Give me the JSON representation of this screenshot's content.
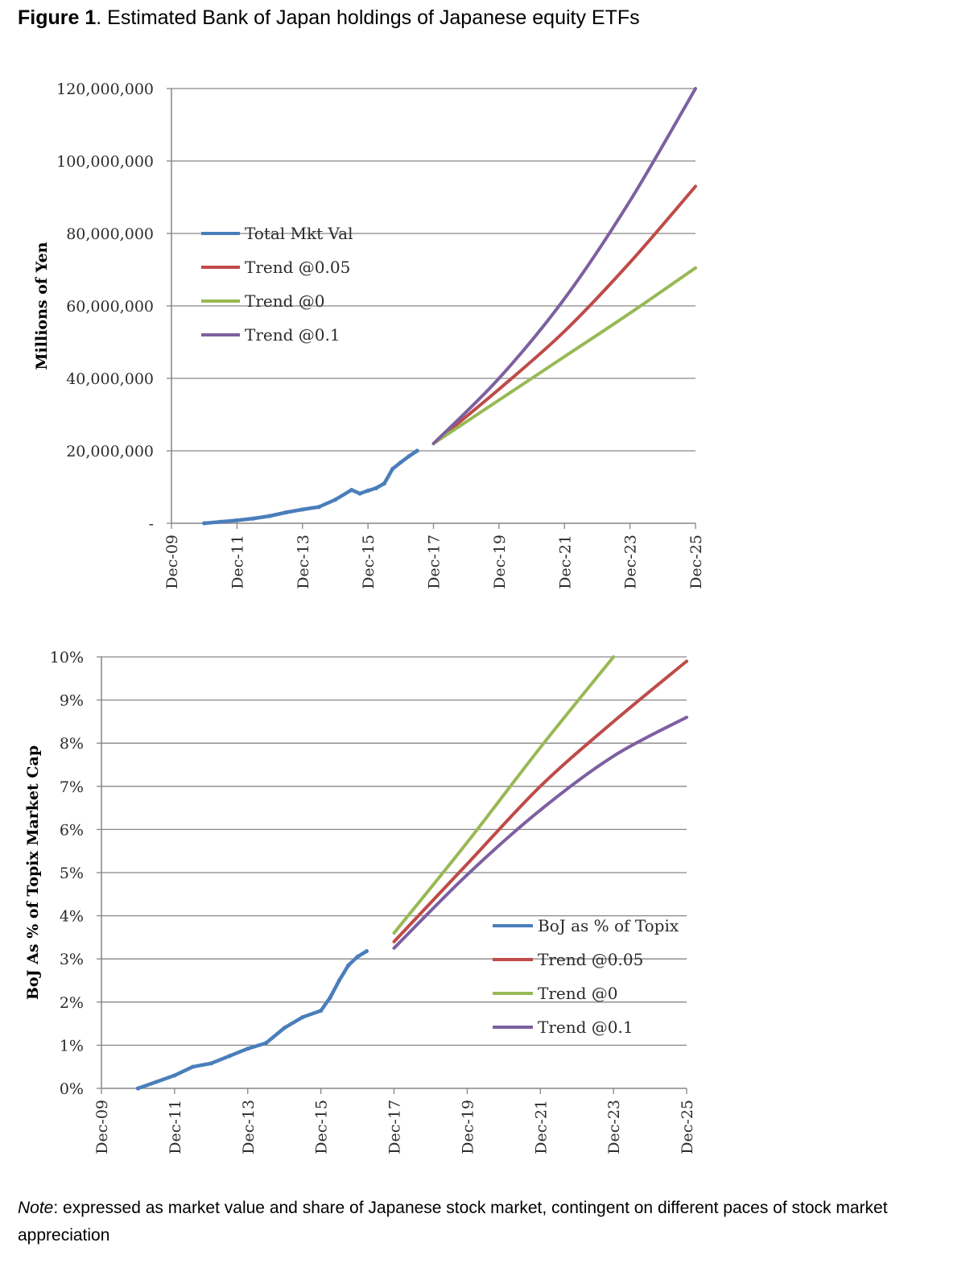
{
  "figure": {
    "label": "Figure 1",
    "title": ". Estimated Bank of Japan holdings of Japanese equity ETFs"
  },
  "note": {
    "label": "Note",
    "text": ": expressed as market value and share of Japanese stock market, contingent on different paces of stock market appreciation"
  },
  "colors": {
    "actual": "#4a7ebb",
    "trend_005": "#be4b48",
    "trend_0": "#98b954",
    "trend_01": "#7d60a0",
    "grid": "#868686"
  },
  "chart_data": [
    {
      "type": "line",
      "ylabel": "Millions of Yen",
      "ylim": [
        0,
        120000000
      ],
      "yticks": [
        "-",
        "20,000,000",
        "40,000,000",
        "60,000,000",
        "80,000,000",
        "100,000,000",
        "120,000,000"
      ],
      "x_ticks": [
        "Dec-09",
        "Dec-11",
        "Dec-13",
        "Dec-15",
        "Dec-17",
        "Dec-19",
        "Dec-21",
        "Dec-23",
        "Dec-25"
      ],
      "grid": true,
      "legend_position": "upper-left",
      "series": [
        {
          "name": "Total Mkt Val",
          "color": "#4a7ebb",
          "points": [
            [
              "Dec-10",
              0
            ],
            [
              "Jun-11",
              400000
            ],
            [
              "Dec-11",
              800000
            ],
            [
              "Jun-12",
              1300000
            ],
            [
              "Dec-12",
              2000000
            ],
            [
              "Jun-13",
              3000000
            ],
            [
              "Dec-13",
              3800000
            ],
            [
              "Jun-14",
              4500000
            ],
            [
              "Dec-14",
              6500000
            ],
            [
              "Jun-15",
              9200000
            ],
            [
              "Sep-15",
              8200000
            ],
            [
              "Dec-15",
              9000000
            ],
            [
              "Mar-16",
              9700000
            ],
            [
              "Jun-16",
              11000000
            ],
            [
              "Sep-16",
              15000000
            ],
            [
              "Dec-16",
              16800000
            ],
            [
              "Mar-17",
              18500000
            ],
            [
              "Jun-17",
              20000000
            ]
          ]
        },
        {
          "name": "Trend @0.05",
          "color": "#be4b48",
          "points": [
            [
              "Dec-17",
              22000000
            ],
            [
              "Dec-19",
              37000000
            ],
            [
              "Dec-21",
              53000000
            ],
            [
              "Dec-23",
              72000000
            ],
            [
              "Dec-25",
              93000000
            ]
          ]
        },
        {
          "name": "Trend @0",
          "color": "#98b954",
          "points": [
            [
              "Dec-17",
              22000000
            ],
            [
              "Dec-19",
              34000000
            ],
            [
              "Dec-21",
              46000000
            ],
            [
              "Dec-23",
              58000000
            ],
            [
              "Dec-25",
              70500000
            ]
          ]
        },
        {
          "name": "Trend @0.1",
          "color": "#7d60a0",
          "points": [
            [
              "Dec-17",
              22000000
            ],
            [
              "Dec-19",
              40000000
            ],
            [
              "Dec-21",
              62000000
            ],
            [
              "Dec-23",
              89000000
            ],
            [
              "Dec-25",
              120000000
            ]
          ]
        }
      ]
    },
    {
      "type": "line",
      "ylabel": "BoJ As % of Topix Market Cap",
      "ylim": [
        0,
        10
      ],
      "yticks": [
        "0%",
        "1%",
        "2%",
        "3%",
        "4%",
        "5%",
        "6%",
        "7%",
        "8%",
        "9%",
        "10%"
      ],
      "x_ticks": [
        "Dec-09",
        "Dec-11",
        "Dec-13",
        "Dec-15",
        "Dec-17",
        "Dec-19",
        "Dec-21",
        "Dec-23",
        "Dec-25"
      ],
      "grid": true,
      "legend_position": "lower-right",
      "series": [
        {
          "name": "BoJ as % of Topix",
          "color": "#4a7ebb",
          "points": [
            [
              "Dec-10",
              0.0
            ],
            [
              "Jun-11",
              0.15
            ],
            [
              "Dec-11",
              0.3
            ],
            [
              "Jun-12",
              0.5
            ],
            [
              "Dec-12",
              0.58
            ],
            [
              "Jun-13",
              0.75
            ],
            [
              "Dec-13",
              0.92
            ],
            [
              "Jun-14",
              1.05
            ],
            [
              "Dec-14",
              1.4
            ],
            [
              "Jun-15",
              1.65
            ],
            [
              "Dec-15",
              1.8
            ],
            [
              "Mar-16",
              2.1
            ],
            [
              "Jun-16",
              2.5
            ],
            [
              "Sep-16",
              2.85
            ],
            [
              "Dec-16",
              3.05
            ],
            [
              "Mar-17",
              3.18
            ]
          ]
        },
        {
          "name": "Trend @0.05",
          "color": "#be4b48",
          "points": [
            [
              "Dec-17",
              3.4
            ],
            [
              "Dec-19",
              5.2
            ],
            [
              "Dec-21",
              7.0
            ],
            [
              "Dec-23",
              8.5
            ],
            [
              "Dec-25",
              9.9
            ]
          ]
        },
        {
          "name": "Trend @0",
          "color": "#98b954",
          "points": [
            [
              "Dec-17",
              3.6
            ],
            [
              "Dec-19",
              5.7
            ],
            [
              "Dec-21",
              7.9
            ],
            [
              "Dec-23",
              10.0
            ]
          ]
        },
        {
          "name": "Trend @0.1",
          "color": "#7d60a0",
          "points": [
            [
              "Dec-17",
              3.25
            ],
            [
              "Dec-19",
              4.95
            ],
            [
              "Dec-21",
              6.45
            ],
            [
              "Dec-23",
              7.7
            ],
            [
              "Dec-25",
              8.6
            ]
          ]
        }
      ]
    }
  ]
}
